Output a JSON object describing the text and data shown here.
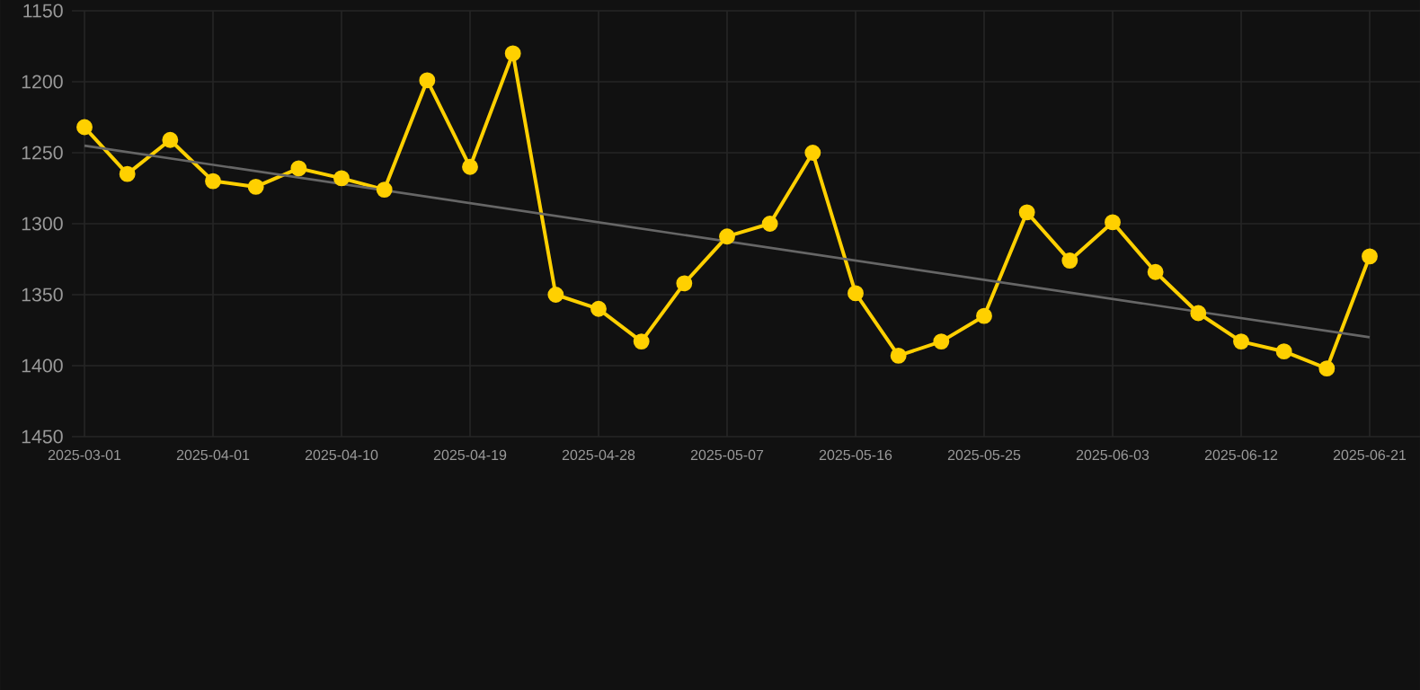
{
  "chart_data": {
    "type": "line",
    "categories": [
      "2025-03-01",
      null,
      null,
      "2025-04-01",
      null,
      null,
      "2025-04-10",
      null,
      null,
      "2025-04-19",
      null,
      null,
      "2025-04-28",
      null,
      null,
      "2025-05-07",
      null,
      null,
      "2025-05-16",
      null,
      null,
      "2025-05-25",
      null,
      null,
      "2025-06-03",
      null,
      null,
      "2025-06-12",
      null,
      null,
      "2025-06-21"
    ],
    "series": [
      {
        "color": "#ffd000",
        "marker": "circle",
        "values": [
          1232,
          1265,
          1241,
          1270,
          1274,
          1261,
          1268,
          1276,
          1199,
          1260,
          1180,
          1350,
          1360,
          1383,
          1342,
          1309,
          1300,
          1250,
          1349,
          1393,
          1383,
          1365,
          1292,
          1326,
          1299,
          1334,
          1363,
          1383,
          1390,
          1402,
          1323
        ]
      },
      {
        "type": "line",
        "color": "#666666",
        "marker": "none",
        "values": [
          1245,
          null,
          null,
          null,
          null,
          null,
          null,
          null,
          null,
          null,
          null,
          null,
          null,
          null,
          null,
          null,
          null,
          null,
          null,
          null,
          null,
          null,
          null,
          null,
          null,
          null,
          null,
          null,
          null,
          null,
          1380
        ]
      }
    ],
    "ylim": [
      1450,
      1150
    ],
    "yticks": [
      1150,
      1200,
      1250,
      1300,
      1350,
      1400,
      1450
    ],
    "grid": true,
    "line_style": "solid"
  }
}
